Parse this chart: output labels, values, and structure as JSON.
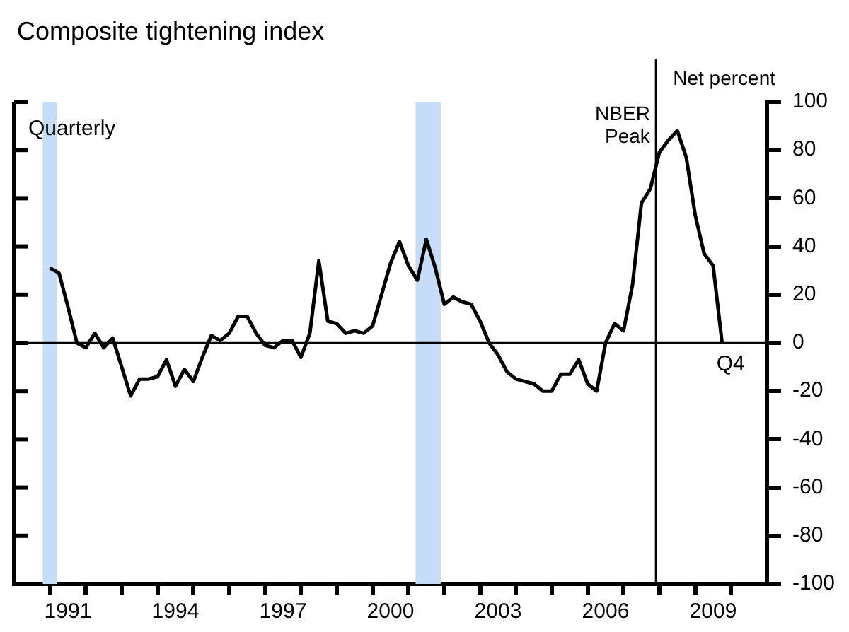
{
  "chart_data": {
    "type": "line",
    "title": "Composite tightening index",
    "ylabel": "Net percent",
    "x": [
      1991,
      1991.25,
      1991.5,
      1991.75,
      1992,
      1992.25,
      1992.5,
      1992.75,
      1993,
      1993.25,
      1993.5,
      1993.75,
      1994,
      1994.25,
      1994.5,
      1994.75,
      1995,
      1995.25,
      1995.5,
      1995.75,
      1996,
      1996.25,
      1996.5,
      1996.75,
      1997,
      1997.25,
      1997.5,
      1997.75,
      1998,
      1998.25,
      1998.5,
      1998.75,
      1999,
      1999.25,
      1999.5,
      1999.75,
      2000,
      2000.25,
      2000.5,
      2000.75,
      2001,
      2001.25,
      2001.5,
      2001.75,
      2002,
      2002.25,
      2002.5,
      2002.75,
      2003,
      2003.25,
      2003.5,
      2003.75,
      2004,
      2004.25,
      2004.5,
      2004.75,
      2005,
      2005.25,
      2005.5,
      2005.75,
      2006,
      2006.25,
      2006.5,
      2006.75,
      2007,
      2007.25,
      2007.5,
      2007.75,
      2008,
      2008.25,
      2008.5,
      2008.75,
      2009,
      2009.25,
      2009.5,
      2009.75
    ],
    "series": [
      {
        "color": "#000000",
        "values": [
          31,
          29,
          15,
          0,
          -2,
          4,
          -2,
          2,
          -10,
          -22,
          -15,
          -15,
          -14,
          -7,
          -18,
          -11,
          -16,
          -6,
          3,
          1,
          4,
          11,
          11,
          4,
          -1,
          -2,
          1,
          1,
          -6,
          4,
          34,
          9,
          8,
          4,
          5,
          4,
          7,
          20,
          33,
          42,
          32,
          26,
          43,
          31,
          16,
          19,
          17,
          16,
          9,
          0,
          -5,
          -12,
          -15,
          -16,
          -17,
          -20,
          -20,
          -13,
          -13,
          -7,
          -17,
          -20,
          0,
          8,
          5,
          24,
          58,
          64,
          79,
          84,
          88,
          77,
          53,
          37,
          32,
          0
        ]
      }
    ],
    "xlim": [
      1990,
      2011
    ],
    "xticks": [
      {
        "value": 1991,
        "label": null
      },
      {
        "value": 1991.5,
        "label": "1991"
      },
      {
        "value": 1992,
        "label": null
      },
      {
        "value": 1993,
        "label": null
      },
      {
        "value": 1994,
        "label": null
      },
      {
        "value": 1994.5,
        "label": "1994"
      },
      {
        "value": 1995,
        "label": null
      },
      {
        "value": 1996,
        "label": null
      },
      {
        "value": 1997,
        "label": null
      },
      {
        "value": 1997.5,
        "label": "1997"
      },
      {
        "value": 1998,
        "label": null
      },
      {
        "value": 1999,
        "label": null
      },
      {
        "value": 2000,
        "label": null
      },
      {
        "value": 2000.5,
        "label": "2000"
      },
      {
        "value": 2001,
        "label": null
      },
      {
        "value": 2002,
        "label": null
      },
      {
        "value": 2003,
        "label": null
      },
      {
        "value": 2003.5,
        "label": "2003"
      },
      {
        "value": 2004,
        "label": null
      },
      {
        "value": 2005,
        "label": null
      },
      {
        "value": 2006,
        "label": null
      },
      {
        "value": 2006.5,
        "label": "2006"
      },
      {
        "value": 2007,
        "label": null
      },
      {
        "value": 2008,
        "label": null
      },
      {
        "value": 2009,
        "label": null
      },
      {
        "value": 2009.5,
        "label": "2009"
      },
      {
        "value": 2010,
        "label": null
      }
    ],
    "ylim": [
      -100,
      100
    ],
    "yticks": [
      -100,
      -80,
      -60,
      -40,
      -20,
      0,
      20,
      40,
      60,
      80,
      100
    ],
    "ref_lines": [
      {
        "axis": "y",
        "value": 0,
        "color": "#000000"
      },
      {
        "axis": "x",
        "value": 2007.9,
        "label": "NBER Peak",
        "color": "#000000"
      }
    ],
    "bands": [
      {
        "axis": "x",
        "from": 1990.8,
        "to": 1991.2,
        "color": "#c6ddfa"
      },
      {
        "axis": "x",
        "from": 2001.2,
        "to": 2001.9,
        "color": "#c6ddfa"
      }
    ],
    "annotations": [
      "Quarterly",
      {
        "text": "Q4",
        "x": 2009.75,
        "y": 0
      }
    ],
    "grid": false,
    "legend": false,
    "marker": "none",
    "line_style": "solid"
  }
}
